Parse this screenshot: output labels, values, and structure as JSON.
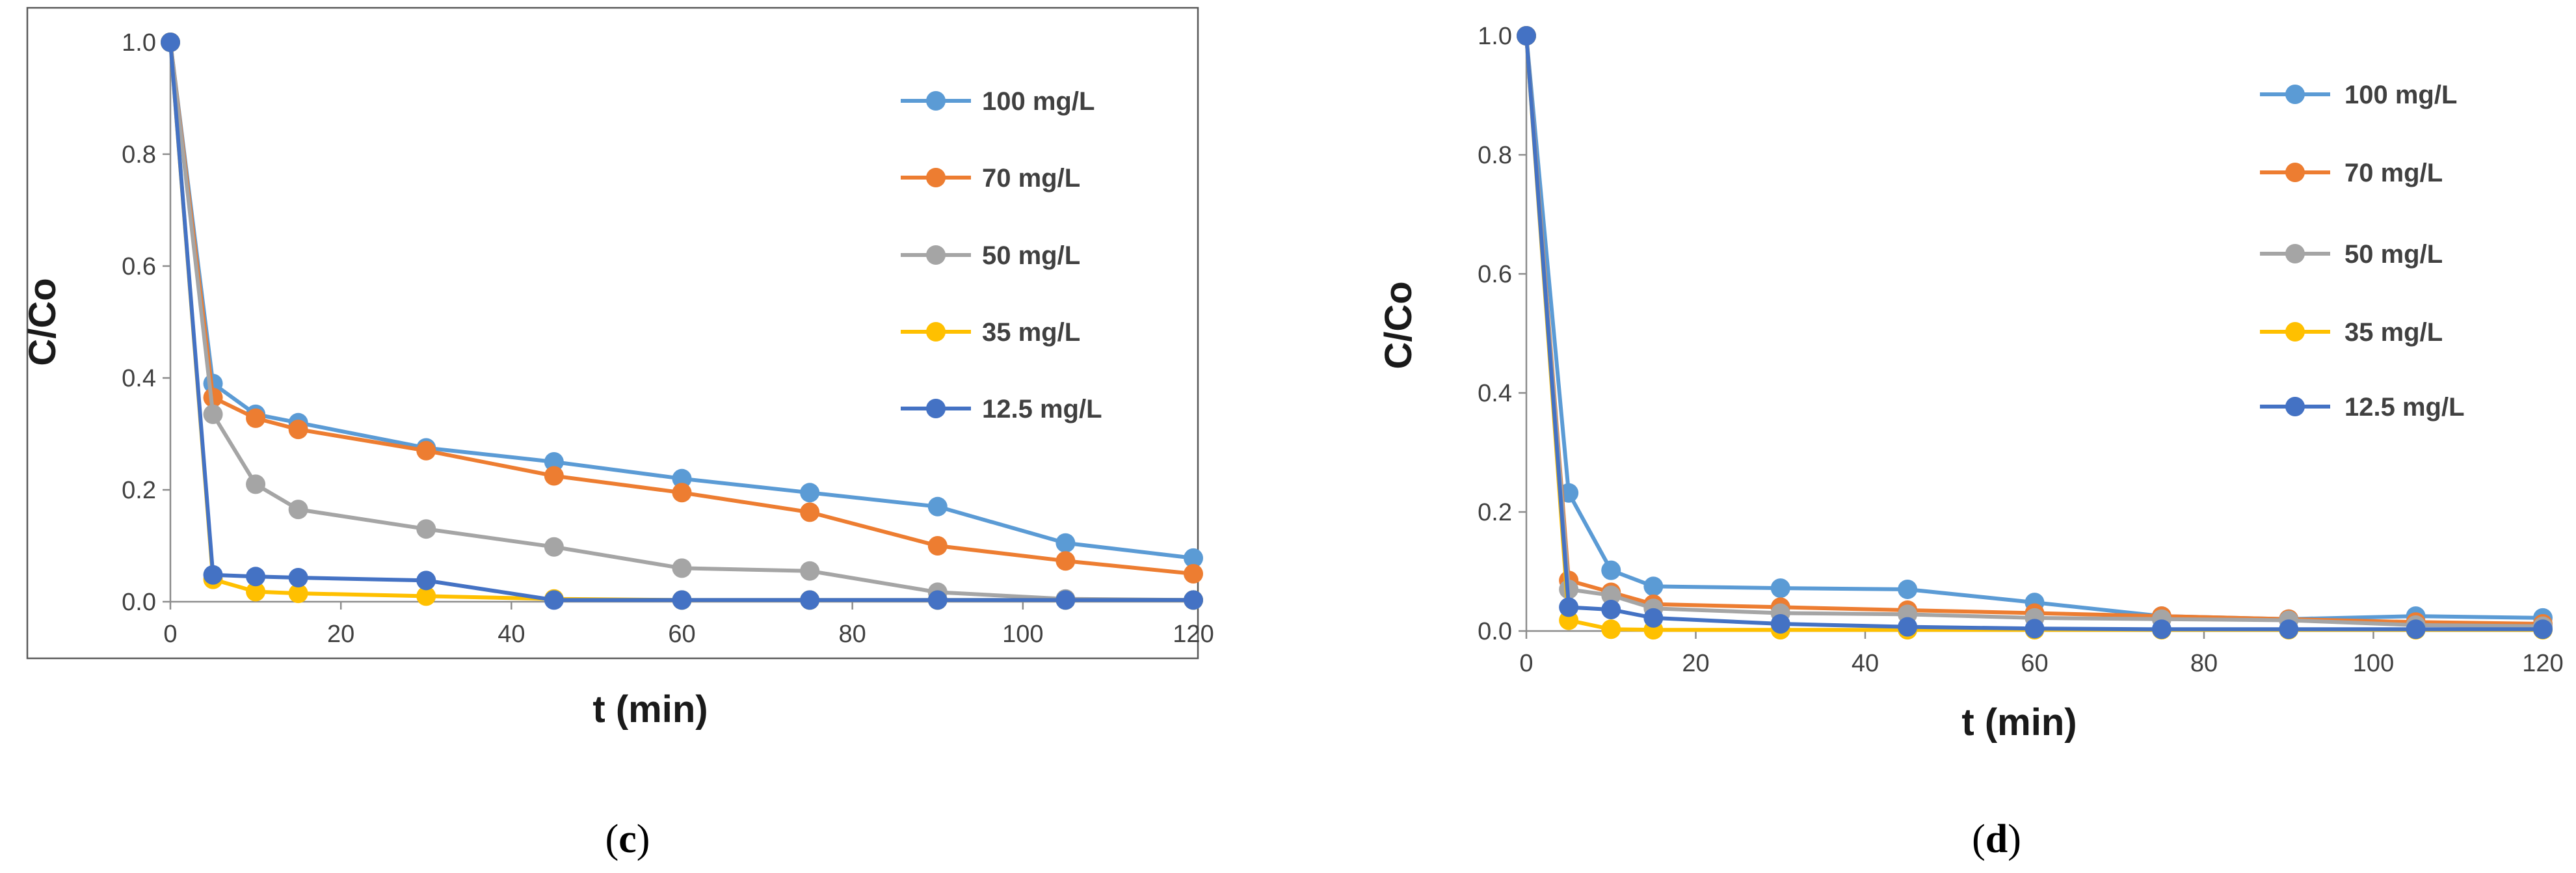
{
  "panels": [
    {
      "caption": "(c)",
      "caption_letter": "c",
      "chart_data": {
        "type": "line",
        "xlabel": "t (min)",
        "ylabel": "C/Co",
        "xlim": [
          0,
          120
        ],
        "ylim": [
          0,
          1.0
        ],
        "xticks": [
          0,
          20,
          40,
          60,
          80,
          100,
          120
        ],
        "yticks": [
          0.0,
          0.2,
          0.4,
          0.6,
          0.8,
          1.0
        ],
        "ytick_labels": [
          "0.0",
          "0.2",
          "0.4",
          "0.6",
          "0.8",
          "1.0"
        ],
        "legend_position": "top-right",
        "series": [
          {
            "name": "100 mg/L",
            "color": "#5B9BD5",
            "x": [
              0,
              5,
              10,
              15,
              30,
              45,
              60,
              75,
              90,
              105,
              120
            ],
            "values": [
              1.0,
              0.39,
              0.335,
              0.32,
              0.275,
              0.25,
              0.22,
              0.195,
              0.17,
              0.105,
              0.078
            ]
          },
          {
            "name": "70 mg/L",
            "color": "#ED7D31",
            "x": [
              0,
              5,
              10,
              15,
              30,
              45,
              60,
              75,
              90,
              105,
              120
            ],
            "values": [
              1.0,
              0.365,
              0.328,
              0.308,
              0.27,
              0.225,
              0.195,
              0.16,
              0.1,
              0.073,
              0.05
            ]
          },
          {
            "name": "50 mg/L",
            "color": "#A5A5A5",
            "x": [
              0,
              5,
              10,
              15,
              30,
              45,
              60,
              75,
              90,
              105,
              120
            ],
            "values": [
              1.0,
              0.335,
              0.21,
              0.165,
              0.13,
              0.098,
              0.06,
              0.055,
              0.017,
              0.005,
              0.003
            ]
          },
          {
            "name": "35 mg/L",
            "color": "#FFC000",
            "x": [
              0,
              5,
              10,
              15,
              30,
              45,
              60,
              75,
              90,
              105,
              120
            ],
            "values": [
              1.0,
              0.04,
              0.018,
              0.015,
              0.01,
              0.005,
              0.003,
              0.003,
              0.003,
              0.003,
              0.003
            ]
          },
          {
            "name": "12.5 mg/L",
            "color": "#4472C4",
            "x": [
              0,
              5,
              10,
              15,
              30,
              45,
              60,
              75,
              90,
              105,
              120
            ],
            "values": [
              1.0,
              0.048,
              0.045,
              0.043,
              0.038,
              0.003,
              0.003,
              0.003,
              0.003,
              0.003,
              0.003
            ]
          }
        ]
      }
    },
    {
      "caption": "(d)",
      "caption_letter": "d",
      "chart_data": {
        "type": "line",
        "xlabel": "t (min)",
        "ylabel": "C/Co",
        "xlim": [
          0,
          120
        ],
        "ylim": [
          0,
          1.0
        ],
        "xticks": [
          0,
          20,
          40,
          60,
          80,
          100,
          120
        ],
        "yticks": [
          0.0,
          0.2,
          0.4,
          0.6,
          0.8,
          1.0
        ],
        "ytick_labels": [
          "0.0",
          "0.2",
          "0.4",
          "0.6",
          "0.8",
          "1.0"
        ],
        "legend_position": "top-right",
        "series": [
          {
            "name": "100 mg/L",
            "color": "#5B9BD5",
            "x": [
              0,
              5,
              10,
              15,
              30,
              45,
              60,
              75,
              90,
              105,
              120
            ],
            "values": [
              1.0,
              0.232,
              0.102,
              0.075,
              0.072,
              0.07,
              0.048,
              0.025,
              0.02,
              0.025,
              0.022
            ]
          },
          {
            "name": "70 mg/L",
            "color": "#ED7D31",
            "x": [
              0,
              5,
              10,
              15,
              30,
              45,
              60,
              75,
              90,
              105,
              120
            ],
            "values": [
              1.0,
              0.085,
              0.065,
              0.045,
              0.04,
              0.035,
              0.03,
              0.025,
              0.02,
              0.015,
              0.012
            ]
          },
          {
            "name": "50 mg/L",
            "color": "#A5A5A5",
            "x": [
              0,
              5,
              10,
              15,
              30,
              45,
              60,
              75,
              90,
              105,
              120
            ],
            "values": [
              1.0,
              0.07,
              0.06,
              0.038,
              0.03,
              0.028,
              0.022,
              0.02,
              0.018,
              0.01,
              0.008
            ]
          },
          {
            "name": "35 mg/L",
            "color": "#FFC000",
            "x": [
              0,
              5,
              10,
              15,
              30,
              45,
              60,
              75,
              90,
              105,
              120
            ],
            "values": [
              1.0,
              0.018,
              0.003,
              0.002,
              0.002,
              0.002,
              0.002,
              0.002,
              0.002,
              0.002,
              0.002
            ]
          },
          {
            "name": "12.5 mg/L",
            "color": "#4472C4",
            "x": [
              0,
              5,
              10,
              15,
              30,
              45,
              60,
              75,
              90,
              105,
              120
            ],
            "values": [
              1.0,
              0.04,
              0.036,
              0.022,
              0.012,
              0.007,
              0.004,
              0.003,
              0.003,
              0.003,
              0.003
            ]
          }
        ]
      }
    }
  ],
  "colors": {
    "axis": "#8C8C8C",
    "text": "#404040",
    "frame": "#595959"
  }
}
